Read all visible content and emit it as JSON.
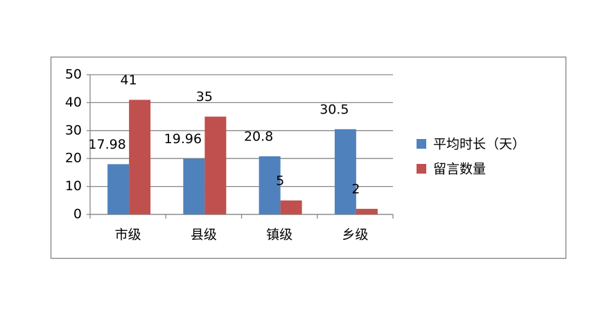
{
  "chart_data": {
    "type": "bar",
    "categories": [
      "市级",
      "县级",
      "镇级",
      "乡级"
    ],
    "series": [
      {
        "name": "平均时长（天）",
        "color": "#4f81bd",
        "values": [
          17.98,
          19.96,
          20.8,
          30.5
        ]
      },
      {
        "name": "留言数量",
        "color": "#c0504d",
        "values": [
          41,
          35,
          5,
          2
        ]
      }
    ],
    "ylim": [
      0,
      50
    ],
    "yticks": [
      0,
      10,
      20,
      30,
      40,
      50
    ],
    "grid": true,
    "legend": "right"
  }
}
